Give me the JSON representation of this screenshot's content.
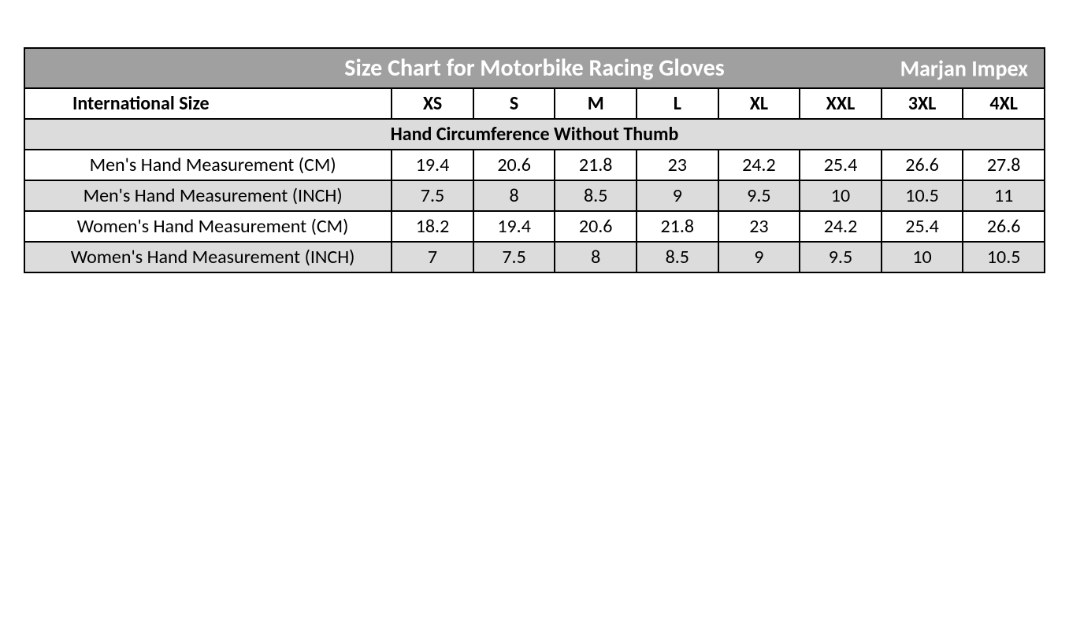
{
  "watermark": {
    "brand_top": "MARJAN",
    "brand_bottom": "IMPEX"
  },
  "table": {
    "title": "Size Chart for Motorbike Racing Gloves",
    "brand": "Marjan Impex",
    "header_label": "International Size",
    "sizes": [
      "XS",
      "S",
      "M",
      "L",
      "XL",
      "XXL",
      "3XL",
      "4XL"
    ],
    "subheader": "Hand Circumference Without Thumb",
    "rows": [
      {
        "label": "Men's Hand Measurement (CM)",
        "values": [
          "19.4",
          "20.6",
          "21.8",
          "23",
          "24.2",
          "25.4",
          "26.6",
          "27.8"
        ],
        "shaded": false
      },
      {
        "label": "Men's Hand Measurement (INCH)",
        "values": [
          "7.5",
          "8",
          "8.5",
          "9",
          "9.5",
          "10",
          "10.5",
          "11"
        ],
        "shaded": true
      },
      {
        "label": "Women's Hand Measurement (CM)",
        "values": [
          "18.2",
          "19.4",
          "20.6",
          "21.8",
          "23",
          "24.2",
          "25.4",
          "26.6"
        ],
        "shaded": false
      },
      {
        "label": "Women's Hand Measurement (INCH)",
        "values": [
          "7",
          "7.5",
          "8",
          "8.5",
          "9",
          "9.5",
          "10",
          "10.5"
        ],
        "shaded": true
      }
    ],
    "colors": {
      "title_bg": "#a0a0a0",
      "title_text": "#ffffff",
      "border": "#000000",
      "row_white": "#ffffff",
      "row_gray": "#dcdcdc"
    }
  }
}
